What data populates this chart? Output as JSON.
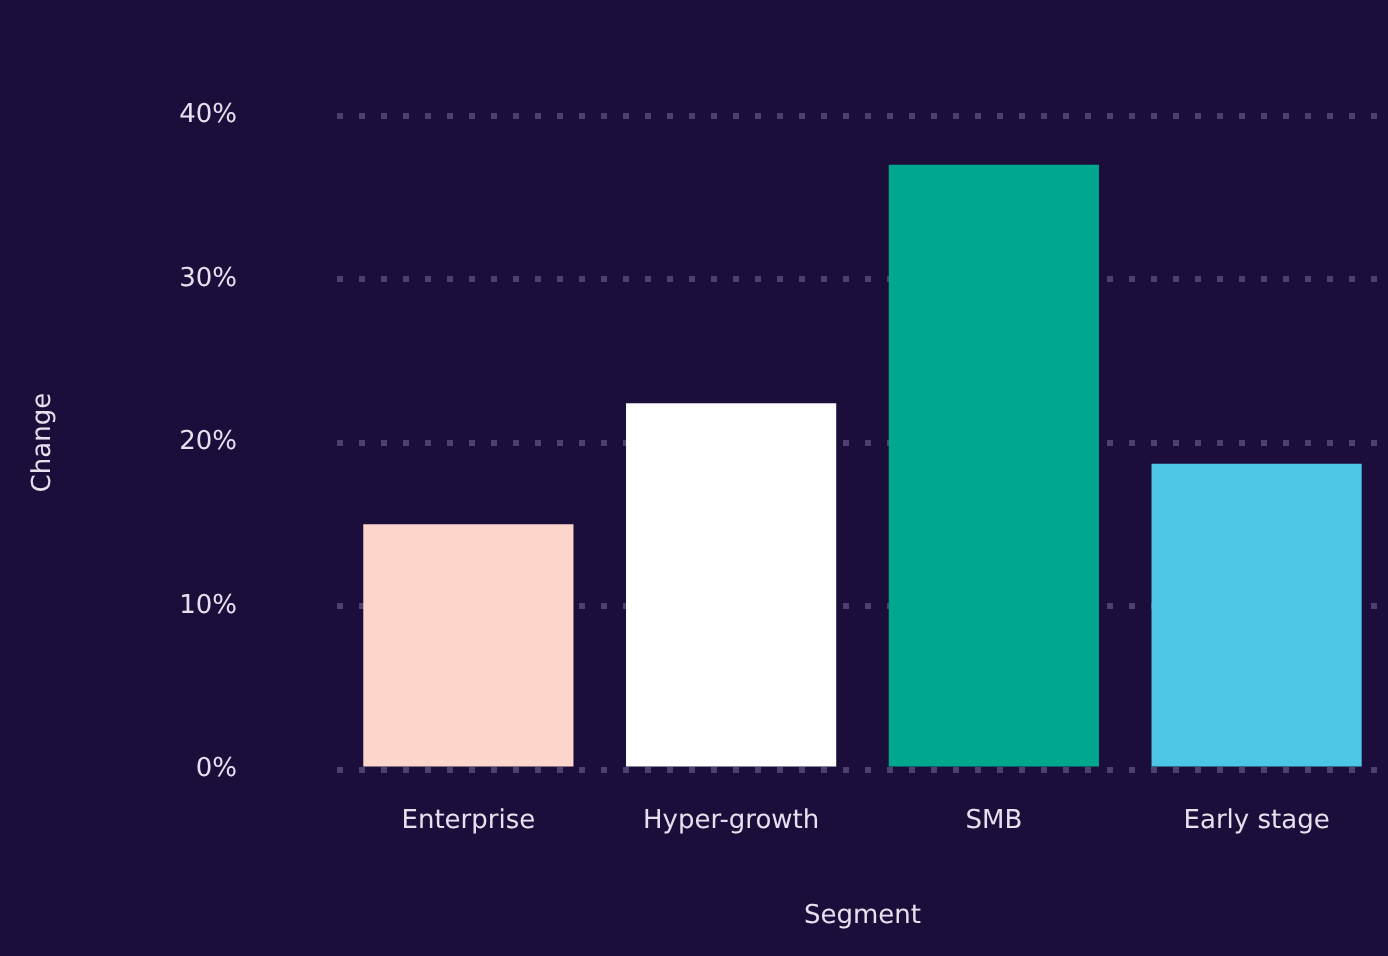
{
  "chart_data": {
    "type": "bar",
    "xlabel": "Segment",
    "ylabel": "Change",
    "categories": [
      "Enterprise",
      "Hyper-growth",
      "SMB",
      "Early stage"
    ],
    "values": [
      15,
      22.4,
      37,
      18.7
    ],
    "colors": [
      "#fcd6cb",
      "#ffffff",
      "#00a78f",
      "#4dc6e6"
    ],
    "ylim": [
      0,
      40
    ],
    "yticks": [
      {
        "value": 0,
        "label": "0%"
      },
      {
        "value": 10,
        "label": "10%"
      },
      {
        "value": 20,
        "label": "20%"
      },
      {
        "value": 30,
        "label": "30%"
      },
      {
        "value": 40,
        "label": "40%"
      }
    ],
    "grid": "y",
    "legend": false
  }
}
